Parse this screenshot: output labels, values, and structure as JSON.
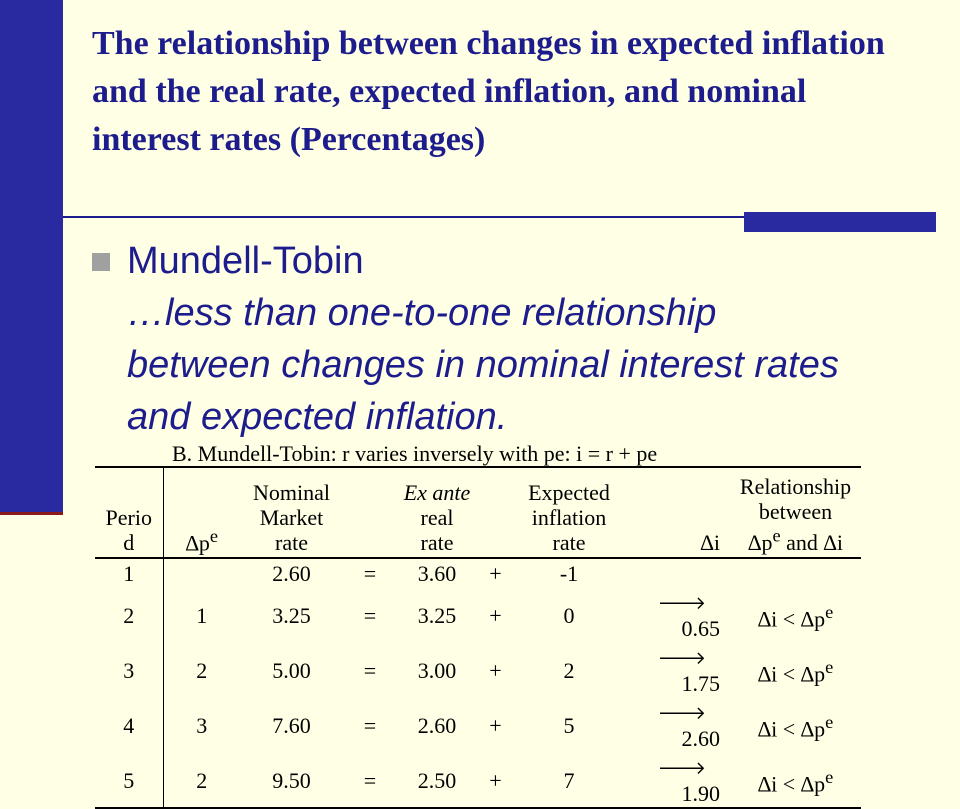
{
  "slide": {
    "title": "The relationship between changes in expected inflation and the real rate, expected inflation, and nominal interest rates (Percentages)",
    "bullet_heading": "Mundell-Tobin",
    "bullet_body": "…less than one-to-one relationship between changes in nominal interest rates and expected inflation.",
    "colors": {
      "background": "#FFFFE5",
      "accent": "#2A2AA0",
      "text": "#1C1C8C"
    }
  },
  "table": {
    "caption": "B.  Mundell-Tobin: r varies inversely with pe: i = r + pe",
    "headers": {
      "period": [
        "Perio",
        "d"
      ],
      "dpe_delta": "∆",
      "dpe_p": "p",
      "dpe_sup": "e",
      "nominal": [
        "Nominal",
        "Market",
        "rate"
      ],
      "ex_ante": "Ex ante",
      "real_rate": [
        "real",
        "rate"
      ],
      "expected": [
        "Expected",
        "inflation",
        "rate"
      ],
      "di": "∆i",
      "relationship": [
        "Relationship",
        "between"
      ],
      "rel_line3": {
        "d1": "∆",
        "p": "p",
        "e": "e",
        "and": " and ",
        "d2": "∆",
        "i": "i"
      }
    },
    "rows": [
      {
        "period": "1",
        "dpe": "",
        "nominal": "2.60",
        "eq": "=",
        "real": "3.60",
        "plus": "+",
        "inflation": "-1",
        "arrow": "",
        "di": "",
        "rel": ""
      },
      {
        "period": "2",
        "dpe": "1",
        "nominal": "3.25",
        "eq": "=",
        "real": "3.25",
        "plus": "+",
        "inflation": "0",
        "arrow": "🡒",
        "di": "0.65",
        "rel": "∆i  <  ∆p",
        "rel_sup": "e"
      },
      {
        "period": "3",
        "dpe": "2",
        "nominal": "5.00",
        "eq": "=",
        "real": "3.00",
        "plus": "+",
        "inflation": "2",
        "arrow": "🡒",
        "di": "1.75",
        "rel": "∆i  <  ∆p",
        "rel_sup": "e"
      },
      {
        "period": "4",
        "dpe": "3",
        "nominal": "7.60",
        "eq": "=",
        "real": "2.60",
        "plus": "+",
        "inflation": "5",
        "arrow": "🡒",
        "di": "2.60",
        "rel": "∆i  <  ∆p",
        "rel_sup": "e"
      },
      {
        "period": "5",
        "dpe": "2",
        "nominal": "9.50",
        "eq": "=",
        "real": "2.50",
        "plus": "+",
        "inflation": "7",
        "arrow": "🡒",
        "di": "1.90",
        "rel": "∆i  <  ∆p",
        "rel_sup": "e"
      }
    ]
  }
}
